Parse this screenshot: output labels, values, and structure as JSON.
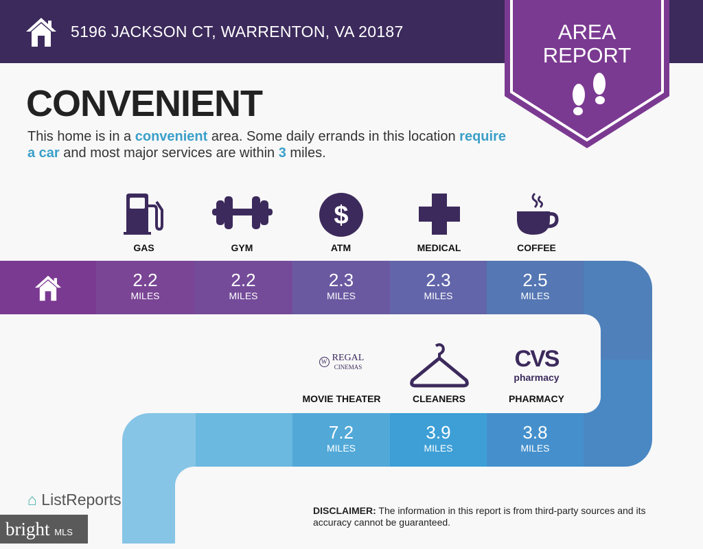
{
  "header": {
    "address": "5196 JACKSON CT, WARRENTON, VA 20187",
    "badge_line1": "AREA",
    "badge_line2": "REPORT"
  },
  "main": {
    "title": "CONVENIENT",
    "desc": {
      "p1": "This home is in a ",
      "h1": "convenient",
      "p2": " area. Some daily errands in this location ",
      "h2": "require a car",
      "p3": " and most major services are within ",
      "h3": "3",
      "p4": " miles."
    }
  },
  "top_row": [
    {
      "label": "GAS",
      "icon": "gas-pump-icon",
      "miles": "2.2",
      "unit": "MILES"
    },
    {
      "label": "GYM",
      "icon": "dumbbell-icon",
      "miles": "2.2",
      "unit": "MILES"
    },
    {
      "label": "ATM",
      "icon": "dollar-icon",
      "miles": "2.3",
      "unit": "MILES"
    },
    {
      "label": "MEDICAL",
      "icon": "medical-cross-icon",
      "miles": "2.3",
      "unit": "MILES"
    },
    {
      "label": "COFFEE",
      "icon": "coffee-cup-icon",
      "miles": "2.5",
      "unit": "MILES"
    }
  ],
  "bottom_row": [
    {
      "label": "MOVIE THEATER",
      "logo": "REGAL CINEMAS",
      "logo1": "REGAL",
      "logo2": "CINEMAS",
      "miles": "7.2",
      "unit": "MILES"
    },
    {
      "label": "CLEANERS",
      "icon": "hanger-icon",
      "miles": "3.9",
      "unit": "MILES"
    },
    {
      "label": "PHARMACY",
      "logo": "CVS pharmacy",
      "logo1": "CVS",
      "logo2": "pharmacy",
      "miles": "3.8",
      "unit": "MILES"
    }
  ],
  "footer": {
    "brand": "ListReports",
    "disclaimer_label": "DISCLAIMER:",
    "disclaimer": " The information in this report is from third-party sources and its accuracy cannot be guaranteed.",
    "watermark": "bright",
    "watermark2": "MLS"
  },
  "colors": {
    "header": "#3c2a5c",
    "badge": "#7b3a91",
    "accent": "#3a9fc9"
  }
}
